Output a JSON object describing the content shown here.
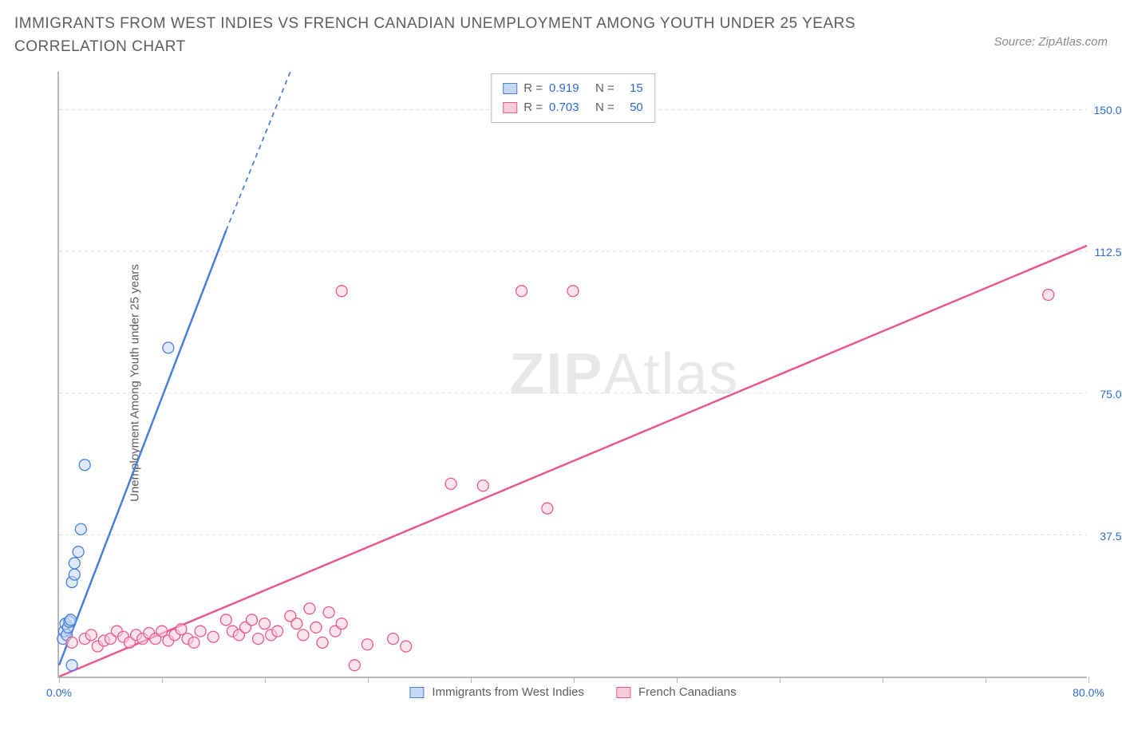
{
  "title": "IMMIGRANTS FROM WEST INDIES VS FRENCH CANADIAN UNEMPLOYMENT AMONG YOUTH UNDER 25 YEARS CORRELATION CHART",
  "source": "Source: ZipAtlas.com",
  "y_axis_label": "Unemployment Among Youth under 25 years",
  "watermark": {
    "bold": "ZIP",
    "rest": "Atlas"
  },
  "chart": {
    "type": "scatter",
    "xlim": [
      0,
      80
    ],
    "ylim": [
      0,
      160
    ],
    "x_ticks": [
      0,
      8,
      16,
      24,
      32,
      40,
      48,
      56,
      64,
      72,
      80
    ],
    "x_tick_labels": {
      "0": "0.0%",
      "80": "80.0%"
    },
    "y_gridlines": [
      37.5,
      75.0,
      112.5,
      150.0
    ],
    "y_tick_labels": [
      "37.5%",
      "75.0%",
      "112.5%",
      "150.0%"
    ],
    "background_color": "#ffffff",
    "grid_color": "#d8d8d8",
    "axis_color": "#b8b8b8",
    "series": [
      {
        "id": "west_indies",
        "label": "Immigrants from West Indies",
        "color": "#4a7fd8",
        "fill": "#c5d7f2",
        "stroke": "#4a7fd8",
        "R": "0.919",
        "N": "15",
        "marker_radius": 7,
        "marker_opacity": 0.55,
        "line_width": 2.5,
        "trend": {
          "x1": 0,
          "y1": 3,
          "x2": 13,
          "y2": 118
        },
        "trend_dash_extension": {
          "x1": 13,
          "y1": 118,
          "x2": 18,
          "y2": 160
        },
        "points": [
          [
            0.3,
            10
          ],
          [
            0.4,
            12
          ],
          [
            0.5,
            14
          ],
          [
            0.6,
            11
          ],
          [
            0.7,
            13
          ],
          [
            0.8,
            14.5
          ],
          [
            0.9,
            15
          ],
          [
            1.0,
            25
          ],
          [
            1.2,
            27
          ],
          [
            1.5,
            33
          ],
          [
            1.7,
            39
          ],
          [
            2.0,
            56
          ],
          [
            1.2,
            30
          ],
          [
            8.5,
            87
          ],
          [
            1.0,
            3
          ]
        ]
      },
      {
        "id": "french_canadians",
        "label": "French Canadians",
        "color": "#e85a8a",
        "fill": "#f7cdd9",
        "stroke": "#e85a8a",
        "R": "0.703",
        "N": "50",
        "marker_radius": 7,
        "marker_opacity": 0.55,
        "line_width": 2.5,
        "trend": {
          "x1": 0,
          "y1": 0,
          "x2": 80,
          "y2": 114
        },
        "points": [
          [
            1,
            9
          ],
          [
            2,
            10
          ],
          [
            2.5,
            11
          ],
          [
            3,
            8
          ],
          [
            3.5,
            9.5
          ],
          [
            4,
            10
          ],
          [
            4.5,
            12
          ],
          [
            5,
            10.5
          ],
          [
            5.5,
            9
          ],
          [
            6,
            11
          ],
          [
            6.5,
            10
          ],
          [
            7,
            11.5
          ],
          [
            7.5,
            10
          ],
          [
            8,
            12
          ],
          [
            8.5,
            9.5
          ],
          [
            9,
            11
          ],
          [
            9.5,
            12.5
          ],
          [
            10,
            10
          ],
          [
            10.5,
            9
          ],
          [
            11,
            12
          ],
          [
            12,
            10.5
          ],
          [
            13,
            15
          ],
          [
            13.5,
            12
          ],
          [
            14,
            11
          ],
          [
            14.5,
            13
          ],
          [
            15,
            15
          ],
          [
            15.5,
            10
          ],
          [
            16,
            14
          ],
          [
            16.5,
            11
          ],
          [
            17,
            12
          ],
          [
            18,
            16
          ],
          [
            18.5,
            14
          ],
          [
            19,
            11
          ],
          [
            19.5,
            18
          ],
          [
            20,
            13
          ],
          [
            20.5,
            9
          ],
          [
            21,
            17
          ],
          [
            21.5,
            12
          ],
          [
            22,
            14
          ],
          [
            23,
            3
          ],
          [
            24,
            8.5
          ],
          [
            26,
            10
          ],
          [
            27,
            8
          ],
          [
            30.5,
            51
          ],
          [
            33,
            50.5
          ],
          [
            38,
            44.5
          ],
          [
            22,
            102
          ],
          [
            36,
            102
          ],
          [
            40,
            102
          ],
          [
            77,
            101
          ]
        ]
      }
    ],
    "legend_box": {
      "rows": [
        {
          "swatch_fill": "#c5d7f2",
          "swatch_stroke": "#4a7fd8",
          "r_label": "R =",
          "r_val": "0.919",
          "n_label": "N =",
          "n_val": "15",
          "val_color": "#2d6bd6"
        },
        {
          "swatch_fill": "#f7cdd9",
          "swatch_stroke": "#e85a8a",
          "r_label": "R =",
          "r_val": "0.703",
          "n_label": "N =",
          "n_val": "50",
          "val_color": "#2d6bd6"
        }
      ]
    },
    "x_label_color": "#2d6bd6",
    "y_label_color": "#2d6bd6"
  }
}
